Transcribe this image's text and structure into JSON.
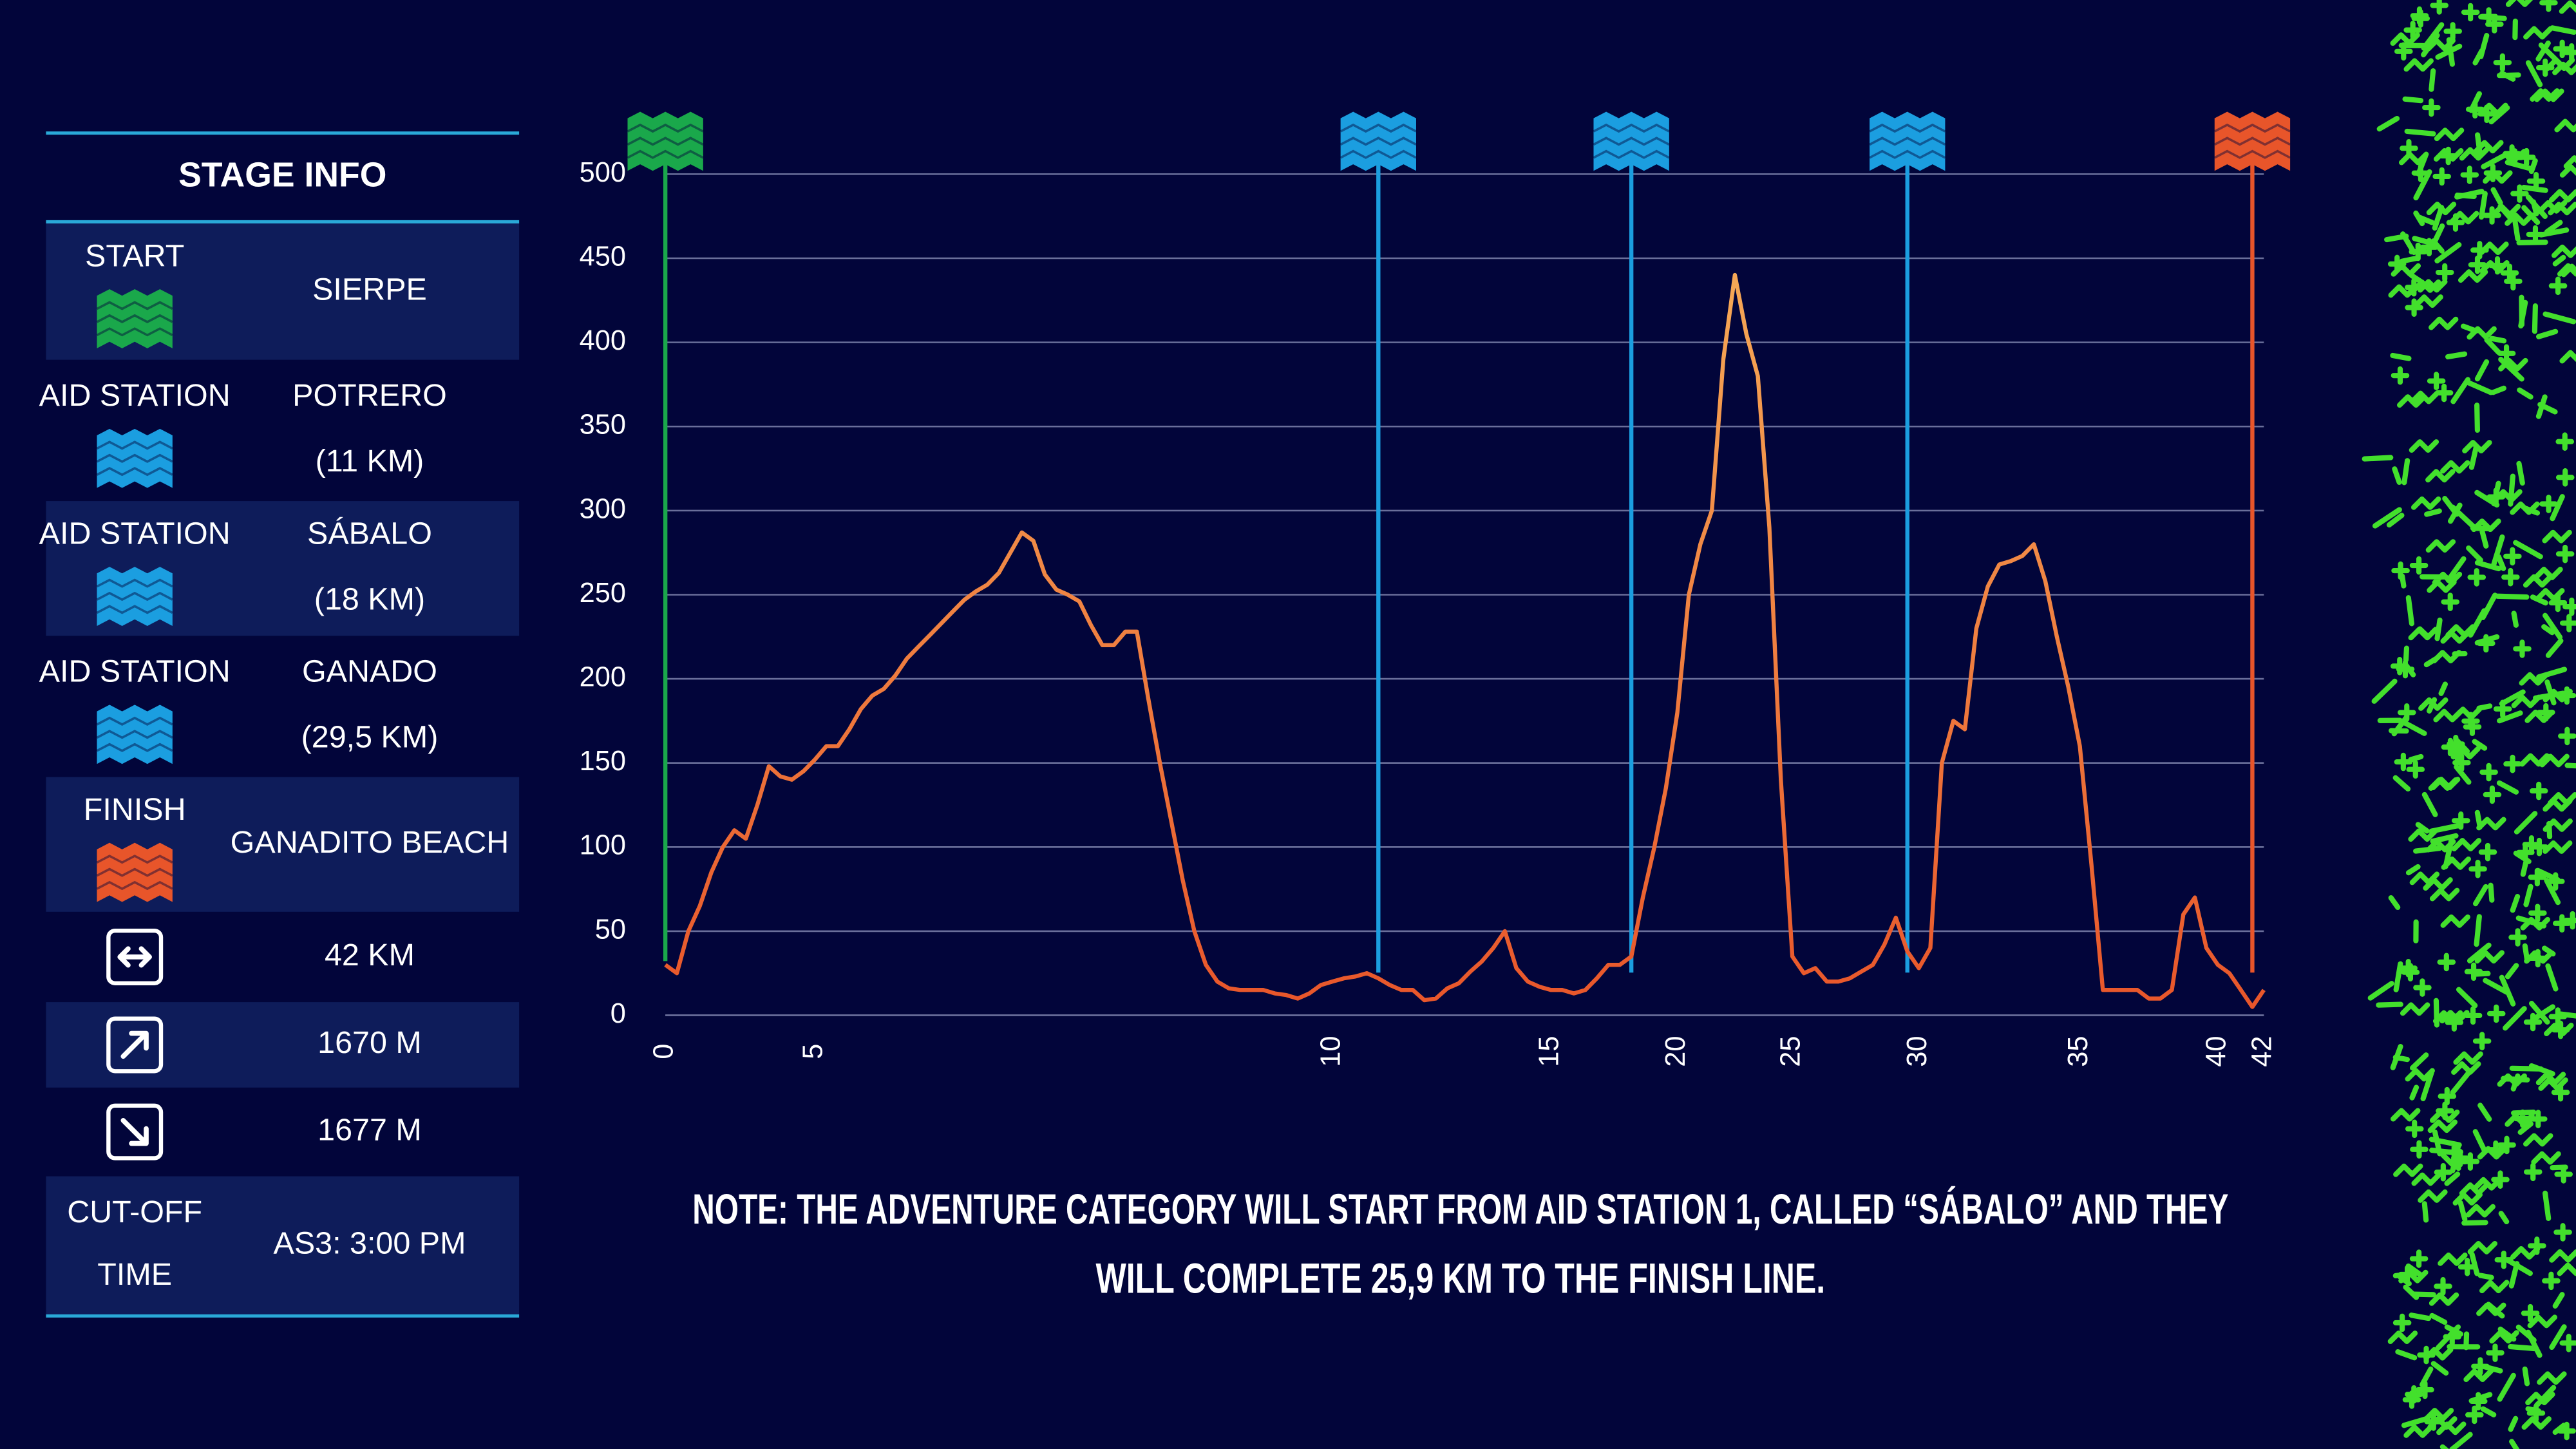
{
  "table": {
    "title": "STAGE INFO",
    "rows": [
      {
        "label": [
          "START"
        ],
        "value": [
          "SIERPE"
        ]
      },
      {
        "label": [
          "AID STATION"
        ],
        "value": [
          "POTRERO",
          "(11 KM)"
        ]
      },
      {
        "label": [
          "AID STATION"
        ],
        "value": [
          "SÁBALO",
          "(18 KM)"
        ]
      },
      {
        "label": [
          "AID STATION"
        ],
        "value": [
          "GANADO",
          "(29,5 KM)"
        ]
      },
      {
        "label": [
          "FINISH"
        ],
        "value": [
          "GANADITO BEACH"
        ]
      },
      {
        "label": [],
        "value": [
          "42 KM"
        ]
      },
      {
        "label": [],
        "value": [
          "1670 M"
        ]
      },
      {
        "label": [],
        "value": [
          "1677 M"
        ]
      },
      {
        "label": [
          "CUT-OFF",
          "TIME"
        ],
        "value": [
          "AS3: 3:00 PM"
        ]
      }
    ]
  },
  "chart_data": {
    "type": "line",
    "categories": [
      "0",
      null,
      null,
      null,
      null,
      null,
      null,
      null,
      null,
      null,
      null,
      null,
      null,
      "5",
      null,
      null,
      null,
      null,
      null,
      null,
      null,
      null,
      null,
      null,
      null,
      null,
      null,
      null,
      null,
      null,
      null,
      null,
      null,
      null,
      null,
      null,
      null,
      null,
      null,
      null,
      null,
      null,
      null,
      null,
      null,
      null,
      null,
      null,
      null,
      null,
      null,
      null,
      null,
      null,
      null,
      null,
      null,
      null,
      "10",
      null,
      null,
      null,
      null,
      null,
      null,
      null,
      null,
      null,
      null,
      null,
      null,
      null,
      null,
      null,
      null,
      null,
      null,
      "15",
      null,
      null,
      null,
      null,
      null,
      null,
      null,
      null,
      null,
      null,
      "20",
      null,
      null,
      null,
      null,
      null,
      null,
      null,
      null,
      null,
      "25",
      null,
      null,
      null,
      null,
      null,
      null,
      null,
      null,
      null,
      null,
      "30",
      null,
      null,
      null,
      null,
      null,
      null,
      null,
      null,
      null,
      null,
      null,
      null,
      null,
      "35",
      null,
      null,
      null,
      null,
      null,
      null,
      null,
      null,
      null,
      null,
      null,
      "40",
      null,
      null,
      null,
      "42"
    ],
    "values": [
      30,
      25,
      50,
      65,
      85,
      100,
      110,
      105,
      125,
      148,
      142,
      140,
      145,
      152,
      160,
      160,
      170,
      182,
      190,
      194,
      202,
      212,
      219,
      226,
      233,
      240,
      247,
      252,
      256,
      263,
      275,
      287,
      282,
      262,
      253,
      250,
      246,
      232,
      220,
      220,
      228,
      228,
      188,
      150,
      115,
      80,
      50,
      30,
      20,
      16,
      15,
      15,
      15,
      13,
      12,
      10,
      13,
      18,
      20,
      22,
      23,
      25,
      22,
      18,
      15,
      15,
      9,
      10,
      16,
      19,
      26,
      32,
      40,
      50,
      28,
      20,
      17,
      15,
      15,
      13,
      15,
      22,
      30,
      30,
      35,
      70,
      100,
      135,
      180,
      250,
      280,
      300,
      390,
      440,
      405,
      380,
      290,
      140,
      35,
      25,
      28,
      20,
      20,
      22,
      26,
      30,
      42,
      58,
      38,
      28,
      40,
      150,
      175,
      170,
      230,
      255,
      268,
      270,
      273,
      280,
      258,
      225,
      195,
      160,
      90,
      15,
      15,
      15,
      15,
      10,
      10,
      15,
      60,
      70,
      40,
      30,
      25,
      15,
      5,
      15
    ],
    "ylim": [
      0,
      500
    ],
    "yticks": [
      0,
      50,
      100,
      150,
      200,
      250,
      300,
      350,
      400,
      450,
      500
    ],
    "grid": true,
    "color_low": "#e8552a",
    "color_high": "#f8b45c",
    "markers": [
      {
        "at": 0,
        "color": "#1aa84b"
      },
      {
        "at": 62,
        "color": "#1b9ee0"
      },
      {
        "at": 84,
        "color": "#1b9ee0"
      },
      {
        "at": 108,
        "color": "#1b9ee0"
      },
      {
        "at": 138,
        "color": "#e8552a"
      }
    ]
  },
  "note": [
    "NOTE: THE ADVENTURE CATEGORY WILL START FROM AID STATION 1, CALLED “SÁBALO” AND THEY",
    "WILL COMPLETE 25,9 KM TO THE FINISH LINE."
  ]
}
